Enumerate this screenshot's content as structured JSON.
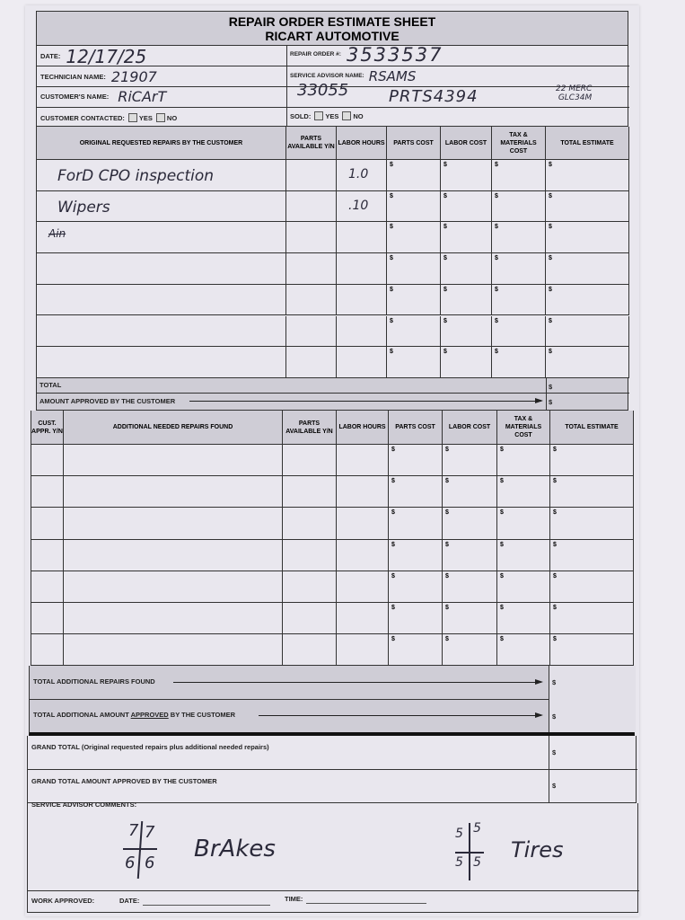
{
  "header": {
    "title": "REPAIR ORDER ESTIMATE SHEET",
    "company": "RICART AUTOMOTIVE"
  },
  "info": {
    "date_label": "DATE:",
    "date_value": "12/17/25",
    "repair_order_label": "REPAIR ORDER #:",
    "repair_order_value": "3533537",
    "technician_label": "TECHNICIAN NAME:",
    "technician_value": "21907",
    "advisor_label": "SERVICE ADVISOR NAME:",
    "advisor_value": "RSAMS",
    "customer_label": "CUSTOMER'S NAME:",
    "customer_value": "RiCArT",
    "note_1": "33055",
    "note_2": "PRTS4394",
    "note_3a": "22 MERC",
    "note_3b": "GLC34M",
    "contacted_label": "CUSTOMER CONTACTED:",
    "sold_label": "SOLD:",
    "yes": "YES",
    "no": "NO"
  },
  "original": {
    "headers": [
      "ORIGINAL REQUESTED REPAIRS BY THE CUSTOMER",
      "PARTS AVAILABLE Y/N",
      "LABOR HOURS",
      "PARTS COST",
      "LABOR COST",
      "TAX & MATERIALS COST",
      "TOTAL ESTIMATE"
    ],
    "rows": [
      {
        "desc": "ForD CPO inspection",
        "hours": "1.0"
      },
      {
        "desc": "Wipers",
        "hours": ".10"
      },
      {
        "desc": "Ain",
        "hours": ""
      },
      {
        "desc": "",
        "hours": ""
      },
      {
        "desc": "",
        "hours": ""
      },
      {
        "desc": "",
        "hours": ""
      },
      {
        "desc": "",
        "hours": ""
      }
    ],
    "currency": "$",
    "total_label": "TOTAL",
    "approved_label": "AMOUNT APPROVED BY THE CUSTOMER"
  },
  "additional": {
    "headers": [
      "CUST. APPR. Y/N",
      "ADDITIONAL NEEDED REPAIRS FOUND",
      "PARTS AVAILABLE Y/N",
      "LABOR HOURS",
      "PARTS COST",
      "LABOR COST",
      "TAX & MATERIALS COST",
      "TOTAL ESTIMATE"
    ],
    "row_count": 7,
    "total_label": "TOTAL ADDITIONAL REPAIRS FOUND",
    "approved_label_pre": "TOTAL ADDITIONAL AMOUNT ",
    "approved_label_u": "APPROVED",
    "approved_label_post": " BY THE CUSTOMER"
  },
  "grand": {
    "total_label": "GRAND TOTAL",
    "total_note": "(Original requested repairs plus additional needed repairs)",
    "approved_label": "GRAND TOTAL AMOUNT APPROVED BY THE CUSTOMER"
  },
  "comments": {
    "label": "SERVICE ADVISOR COMMENTS:",
    "brakes": {
      "tl": "7",
      "tr": "7",
      "bl": "6",
      "br": "6",
      "word": "BrAkes"
    },
    "tires": {
      "tl": "5",
      "tr": "5",
      "bl": "5",
      "br": "5",
      "word": "Tires"
    }
  },
  "footer": {
    "work_approved": "WORK APPROVED:",
    "date": "DATE:",
    "time": "TIME:"
  }
}
